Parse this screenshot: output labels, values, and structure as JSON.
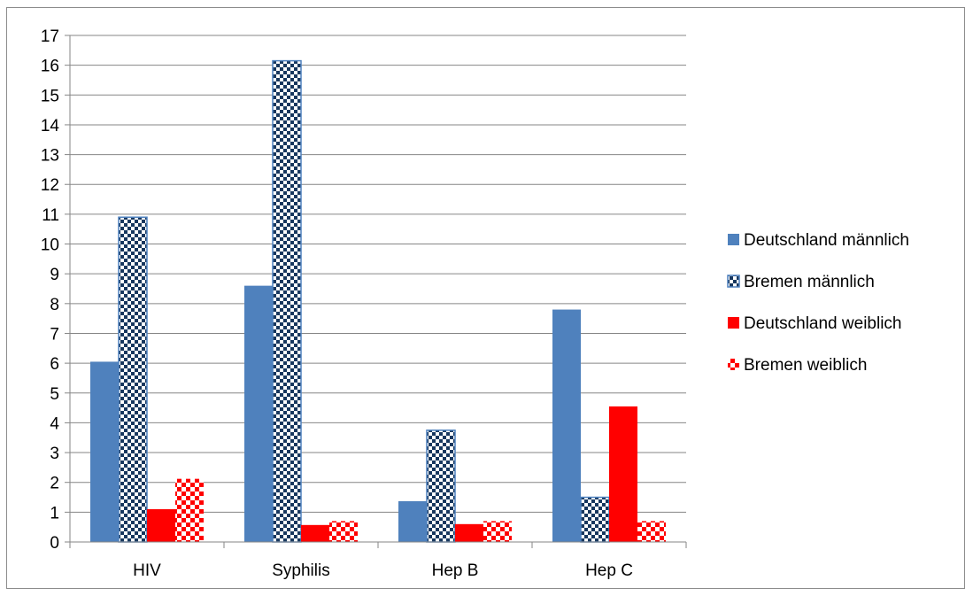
{
  "chart_data": {
    "type": "bar",
    "categories": [
      "HIV",
      "Syphilis",
      "Hep B",
      "Hep C"
    ],
    "series": [
      {
        "name": "Deutschland männlich",
        "values": [
          6.05,
          8.6,
          1.37,
          7.8
        ],
        "color": "#4f81bd",
        "pattern": "solid"
      },
      {
        "name": "Bremen männlich",
        "values": [
          10.9,
          16.15,
          3.75,
          1.5
        ],
        "color": "#17375e",
        "pattern": "checker"
      },
      {
        "name": "Deutschland weiblich",
        "values": [
          1.1,
          0.57,
          0.6,
          4.55
        ],
        "color": "#ff0000",
        "pattern": "solid"
      },
      {
        "name": "Bremen weiblich",
        "values": [
          2.12,
          0.7,
          0.7,
          0.7
        ],
        "color": "#ff0000",
        "pattern": "checker-light"
      }
    ],
    "ylim": [
      0,
      17
    ],
    "yticks": [
      "0",
      "1",
      "2",
      "3",
      "4",
      "5",
      "6",
      "7",
      "8",
      "9",
      "10",
      "11",
      "12",
      "13",
      "14",
      "15",
      "16",
      "17"
    ],
    "grid": true,
    "legend_position": "right"
  }
}
